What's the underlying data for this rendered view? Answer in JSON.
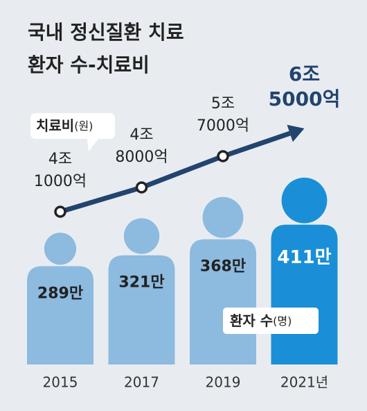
{
  "chart_data": {
    "type": "pictogram-line",
    "title": [
      "국내 정신질환 치료",
      "환자 수-치료비"
    ],
    "categories": [
      "2015",
      "2017",
      "2019",
      "2021년"
    ],
    "series": [
      {
        "name": "환자 수",
        "unit": "(명)",
        "color": "#8dbadf",
        "highlight_color": "#1a8fd7",
        "values": [
          289,
          321,
          368,
          411
        ],
        "value_labels": [
          "289만",
          "321만",
          "368만",
          "411만"
        ]
      },
      {
        "name": "치료비",
        "unit": "(원)",
        "color": "#22446e",
        "values": [
          4.1,
          4.8,
          5.7,
          6.5
        ],
        "value_labels": [
          [
            "4조",
            "1000억"
          ],
          [
            "4조",
            "8000억"
          ],
          [
            "5조",
            "7000억"
          ],
          [
            "6조",
            "5000억"
          ]
        ]
      }
    ]
  }
}
